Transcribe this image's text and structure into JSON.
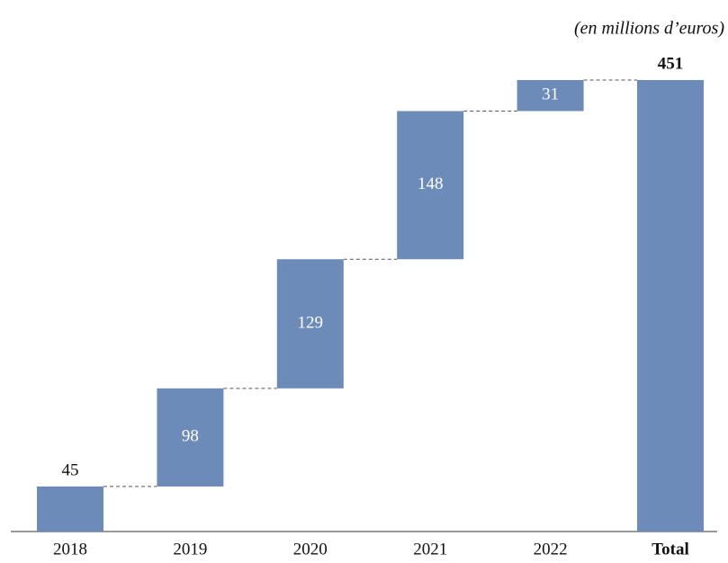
{
  "chart_data": {
    "type": "waterfall",
    "subtitle": "(en millions d’euros)",
    "categories": [
      "2018",
      "2019",
      "2020",
      "2021",
      "2022",
      "Total"
    ],
    "values": [
      45,
      98,
      129,
      148,
      31,
      451
    ],
    "color": "#6d8bb8",
    "ylim": [
      0,
      451
    ]
  }
}
